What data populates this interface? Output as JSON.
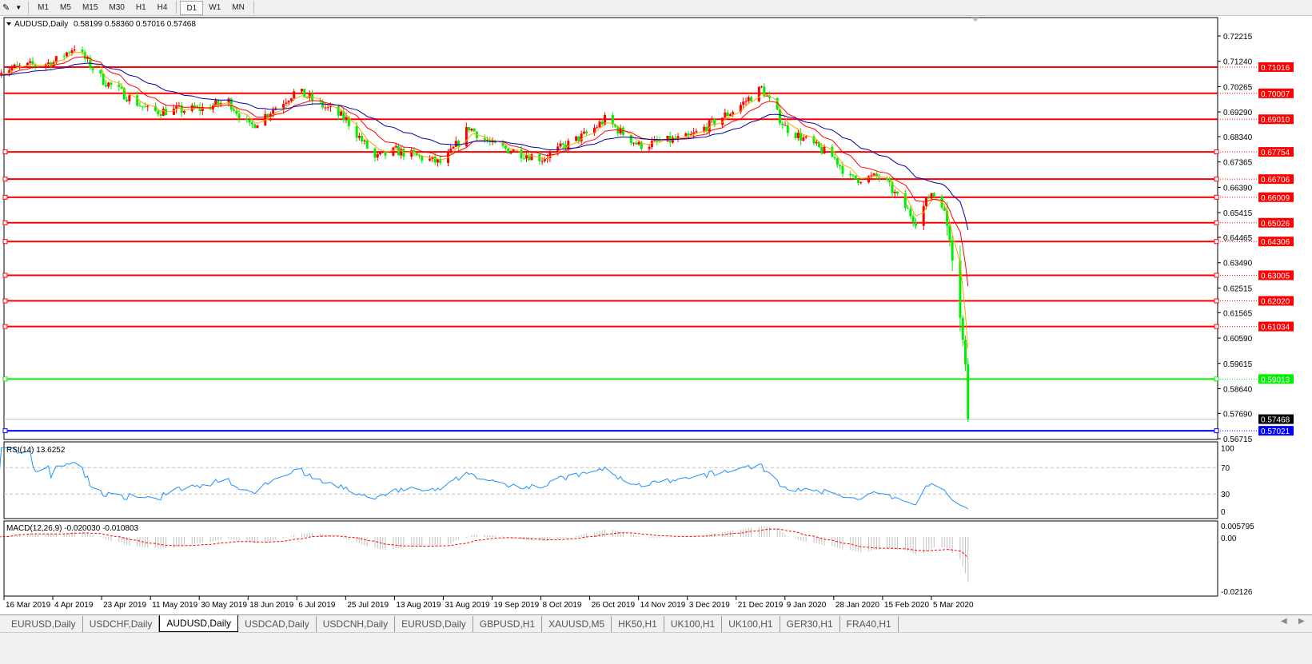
{
  "toolbar": {
    "timeframes": [
      "M1",
      "M5",
      "M15",
      "M30",
      "H1",
      "H4",
      "D1",
      "W1",
      "MN"
    ],
    "active": "D1",
    "icons": [
      "line-tools-icon",
      "dropdown-arrow-icon"
    ]
  },
  "chart": {
    "symbol_label": "AUDUSD,Daily",
    "ohlc": "0.58199 0.58360 0.57016 0.57468",
    "price_ticks": [
      "0.72215",
      "0.71240",
      "0.70265",
      "0.69290",
      "0.68340",
      "0.67365",
      "0.66390",
      "0.65415",
      "0.64465",
      "0.63490",
      "0.62515",
      "0.61565",
      "0.60590",
      "0.59615",
      "0.58640",
      "0.57690",
      "0.56715"
    ],
    "levels": [
      {
        "price": "0.71016",
        "color": "#ff0000"
      },
      {
        "price": "0.70007",
        "color": "#ff0000"
      },
      {
        "price": "0.69010",
        "color": "#ff0000"
      },
      {
        "price": "0.67754",
        "color": "#ff0000"
      },
      {
        "price": "0.66706",
        "color": "#ff0000"
      },
      {
        "price": "0.66009",
        "color": "#ff0000"
      },
      {
        "price": "0.65026",
        "color": "#ff0000"
      },
      {
        "price": "0.64306",
        "color": "#ff0000"
      },
      {
        "price": "0.63005",
        "color": "#ff0000"
      },
      {
        "price": "0.62020",
        "color": "#ff0000"
      },
      {
        "price": "0.61034",
        "color": "#ff0000"
      },
      {
        "price": "0.59013",
        "color": "#00ee00"
      },
      {
        "price": "0.57021",
        "color": "#0000ff"
      }
    ],
    "current_price": "0.57468",
    "bull_color": "#ff0000",
    "bear_color": "#00ee00",
    "ma_colors": [
      "#ffa500",
      "#ff0000",
      "#0000aa"
    ],
    "price_path": [
      [
        "2019-03-14",
        0.709
      ],
      [
        "2019-04-04",
        0.712
      ],
      [
        "2019-04-12",
        0.718
      ],
      [
        "2019-04-23",
        0.705
      ],
      [
        "2019-05-11",
        0.693
      ],
      [
        "2019-05-30",
        0.694
      ],
      [
        "2019-06-10",
        0.697
      ],
      [
        "2019-06-18",
        0.687
      ],
      [
        "2019-07-06",
        0.701
      ],
      [
        "2019-07-25",
        0.69
      ],
      [
        "2019-08-05",
        0.675
      ],
      [
        "2019-08-13",
        0.678
      ],
      [
        "2019-08-31",
        0.673
      ],
      [
        "2019-09-10",
        0.687
      ],
      [
        "2019-09-19",
        0.68
      ],
      [
        "2019-10-08",
        0.675
      ],
      [
        "2019-10-26",
        0.685
      ],
      [
        "2019-11-01",
        0.69
      ],
      [
        "2019-11-14",
        0.68
      ],
      [
        "2019-12-03",
        0.683
      ],
      [
        "2019-12-21",
        0.694
      ],
      [
        "2019-12-31",
        0.702
      ],
      [
        "2020-01-09",
        0.687
      ],
      [
        "2020-01-28",
        0.675
      ],
      [
        "2020-02-03",
        0.667
      ],
      [
        "2020-02-15",
        0.668
      ],
      [
        "2020-02-21",
        0.66
      ],
      [
        "2020-02-28",
        0.651
      ],
      [
        "2020-03-05",
        0.662
      ],
      [
        "2020-03-09",
        0.658
      ],
      [
        "2020-03-12",
        0.645
      ],
      [
        "2020-03-16",
        0.615
      ],
      [
        "2020-03-18",
        0.595
      ],
      [
        "2020-03-19",
        0.5747
      ]
    ],
    "date_labels": [
      "16 Mar 2019",
      "4 Apr 2019",
      "23 Apr 2019",
      "11 May 2019",
      "30 May 2019",
      "18 Jun 2019",
      "6 Jul 2019",
      "25 Jul 2019",
      "13 Aug 2019",
      "31 Aug 2019",
      "19 Sep 2019",
      "8 Oct 2019",
      "26 Oct 2019",
      "14 Nov 2019",
      "3 Dec 2019",
      "21 Dec 2019",
      "9 Jan 2020",
      "28 Jan 2020",
      "15 Feb 2020",
      "5 Mar 2020"
    ]
  },
  "rsi": {
    "label": "RSI(14) 13.6252",
    "ticks": [
      "100",
      "70",
      "30",
      "0"
    ],
    "color": "#1e90ff"
  },
  "macd": {
    "label": "MACD(12,26,9) -0.020030 -0.010803",
    "ticks": [
      "0.005795",
      "0.00",
      "-0.02126"
    ]
  },
  "tabs": [
    "EURUSD,Daily",
    "USDCHF,Daily",
    "AUDUSD,Daily",
    "USDCAD,Daily",
    "USDCNH,Daily",
    "EURUSD,Daily",
    "GBPUSD,H1",
    "XAUUSD,M5",
    "HK50,H1",
    "UK100,H1",
    "UK100,H1",
    "GER30,H1",
    "FRA40,H1"
  ],
  "active_tab": "AUDUSD,Daily"
}
